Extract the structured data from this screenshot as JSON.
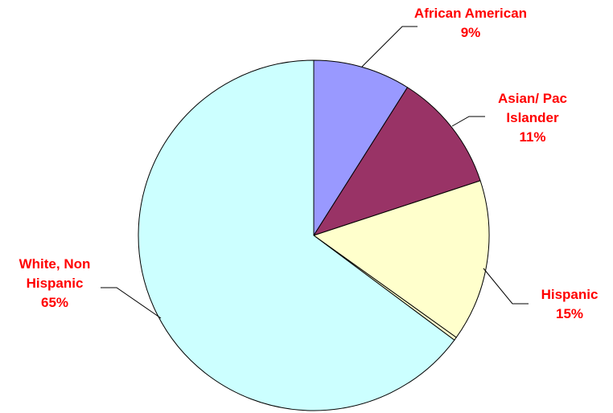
{
  "chart_data": {
    "type": "pie",
    "title": "",
    "start_angle_deg": 0,
    "direction": "clockwise",
    "label_color": "#ff0000",
    "slices": [
      {
        "label_lines": [
          "African American"
        ],
        "percent_label": "9%",
        "value": 9,
        "color": "#9999ff"
      },
      {
        "label_lines": [
          "Asian/ Pac",
          "Islander"
        ],
        "percent_label": "11%",
        "value": 11,
        "color": "#993366"
      },
      {
        "label_lines": [
          "Hispanic"
        ],
        "percent_label": "15%",
        "value": 15,
        "color": "#ffffcc"
      },
      {
        "label_lines": [],
        "percent_label": "",
        "value": 0.3,
        "color": "#ffffcc"
      },
      {
        "label_lines": [
          "White, Non",
          "Hispanic"
        ],
        "percent_label": "65%",
        "value": 65,
        "color": "#ccffff"
      }
    ]
  }
}
